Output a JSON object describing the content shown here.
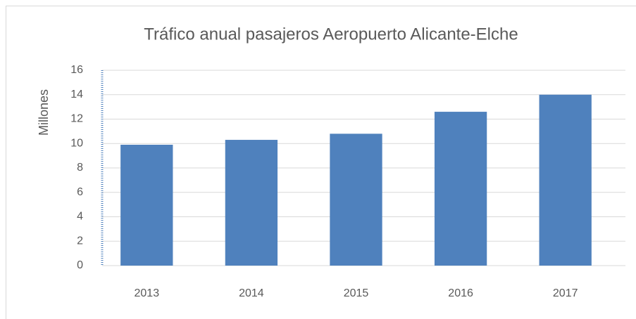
{
  "chart_data": {
    "type": "bar",
    "title": "Tráfico anual pasajeros Aeropuerto Alicante-Elche",
    "y_label": "Millones",
    "categories": [
      "2013",
      "2014",
      "2015",
      "2016",
      "2017"
    ],
    "values": [
      9.9,
      10.3,
      10.8,
      12.6,
      14.0
    ],
    "color": "#4f81bd",
    "ylim": [
      0,
      16
    ],
    "yticks": [
      0,
      2,
      4,
      6,
      8,
      10,
      12,
      14,
      16
    ],
    "grid": true
  }
}
